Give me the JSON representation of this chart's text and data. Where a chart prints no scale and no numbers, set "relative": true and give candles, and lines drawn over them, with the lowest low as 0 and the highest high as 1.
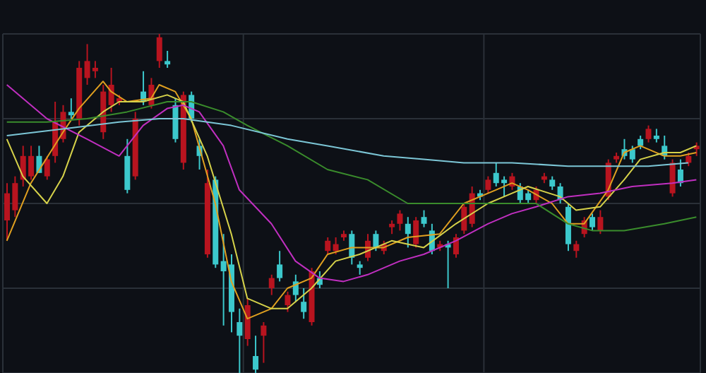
{
  "chart_data": {
    "type": "candlestick",
    "relative": true,
    "grid": true,
    "tick_labels": false,
    "categories": [
      null,
      null,
      null,
      null,
      null,
      null,
      null,
      null,
      null,
      null,
      null,
      null,
      null,
      null,
      null,
      null,
      null,
      null,
      null,
      null,
      null,
      null,
      null,
      null,
      null,
      null,
      null,
      null,
      null,
      null,
      null,
      null,
      null,
      null,
      null,
      null,
      null,
      null,
      null,
      null,
      null,
      null,
      null,
      null,
      null,
      null,
      null,
      null,
      null,
      null,
      null,
      null,
      null,
      null,
      null,
      null,
      null,
      null,
      null,
      null,
      null,
      null,
      null,
      null,
      null,
      null,
      null,
      null,
      null,
      null,
      null,
      null,
      null,
      null,
      null,
      null,
      null,
      null,
      null,
      null,
      null,
      null,
      null,
      null,
      null,
      null,
      null
    ],
    "ohlc": [
      [
        0.45,
        0.56,
        0.39,
        0.53
      ],
      [
        0.48,
        0.58,
        0.46,
        0.56
      ],
      [
        0.57,
        0.67,
        0.55,
        0.64
      ],
      [
        0.58,
        0.67,
        0.57,
        0.64
      ],
      [
        0.64,
        0.67,
        0.59,
        0.59
      ],
      [
        0.58,
        0.64,
        0.57,
        0.63
      ],
      [
        0.64,
        0.8,
        0.62,
        0.74
      ],
      [
        0.69,
        0.79,
        0.68,
        0.77
      ],
      [
        0.77,
        0.81,
        0.75,
        0.76
      ],
      [
        0.75,
        0.92,
        0.73,
        0.9
      ],
      [
        0.87,
        0.97,
        0.85,
        0.92
      ],
      [
        0.89,
        0.92,
        0.87,
        0.9
      ],
      [
        0.71,
        0.85,
        0.69,
        0.83
      ],
      [
        0.79,
        0.9,
        0.77,
        0.85
      ],
      [
        0.8,
        0.82,
        0.79,
        0.81
      ],
      [
        0.64,
        0.69,
        0.53,
        0.54
      ],
      [
        0.58,
        0.77,
        0.57,
        0.75
      ],
      [
        0.83,
        0.89,
        0.79,
        0.8
      ],
      [
        0.79,
        0.87,
        0.78,
        0.85
      ],
      [
        0.92,
        1,
        0.9,
        0.99
      ],
      [
        0.92,
        0.95,
        0.9,
        0.91
      ],
      [
        0.79,
        0.81,
        0.68,
        0.69
      ],
      [
        0.62,
        0.83,
        0.6,
        0.82
      ],
      [
        0.82,
        0.83,
        0.74,
        0.75
      ],
      [
        0.67,
        0.69,
        0.6,
        0.64
      ],
      [
        0.35,
        0.6,
        0.34,
        0.56
      ],
      [
        0.57,
        0.58,
        0.31,
        0.32
      ],
      [
        0.33,
        0.41,
        0.14,
        0.3
      ],
      [
        0.32,
        0.35,
        0.12,
        0.18
      ],
      [
        0.15,
        0.19,
        0,
        0.11
      ],
      [
        0.1,
        0.22,
        0.08,
        0.2
      ],
      [
        0.05,
        0.11,
        0,
        0.01
      ],
      [
        0.11,
        0.15,
        0.03,
        0.14
      ],
      [
        0.25,
        0.29,
        0.23,
        0.28
      ],
      [
        0.32,
        0.36,
        0.27,
        0.28
      ],
      [
        0.2,
        0.24,
        0.18,
        0.23
      ],
      [
        0.27,
        0.29,
        0.21,
        0.23
      ],
      [
        0.21,
        0.25,
        0.16,
        0.18
      ],
      [
        0.15,
        0.31,
        0.14,
        0.3
      ],
      [
        0.28,
        0.3,
        0.25,
        0.26
      ],
      [
        0.36,
        0.4,
        0.35,
        0.39
      ],
      [
        0.36,
        0.4,
        0.35,
        0.38
      ],
      [
        0.4,
        0.42,
        0.39,
        0.41
      ],
      [
        0.41,
        0.42,
        0.32,
        0.34
      ],
      [
        0.32,
        0.33,
        0.29,
        0.31
      ],
      [
        0.34,
        0.41,
        0.33,
        0.39
      ],
      [
        0.41,
        0.42,
        0.36,
        0.37
      ],
      [
        0.36,
        0.39,
        0.35,
        0.38
      ],
      [
        0.43,
        0.45,
        0.41,
        0.44
      ],
      [
        0.44,
        0.48,
        0.42,
        0.47
      ],
      [
        0.44,
        0.46,
        0.37,
        0.41
      ],
      [
        0.38,
        0.46,
        0.37,
        0.45
      ],
      [
        0.46,
        0.48,
        0.43,
        0.44
      ],
      [
        0.42,
        0.44,
        0.35,
        0.36
      ],
      [
        0.37,
        0.39,
        0.36,
        0.38
      ],
      [
        0.38,
        0.39,
        0.25,
        0.37
      ],
      [
        0.35,
        0.41,
        0.34,
        0.4
      ],
      [
        0.42,
        0.5,
        0.41,
        0.49
      ],
      [
        0.44,
        0.55,
        0.43,
        0.53
      ],
      [
        0.53,
        0.54,
        0.51,
        0.52
      ],
      [
        0.54,
        0.58,
        0.53,
        0.57
      ],
      [
        0.59,
        0.62,
        0.55,
        0.56
      ],
      [
        0.57,
        0.58,
        0.52,
        0.56
      ],
      [
        0.55,
        0.59,
        0.54,
        0.58
      ],
      [
        0.55,
        0.56,
        0.5,
        0.51
      ],
      [
        0.53,
        0.54,
        0.5,
        0.51
      ],
      [
        0.51,
        0.55,
        0.5,
        0.54
      ],
      [
        0.57,
        0.59,
        0.56,
        0.58
      ],
      [
        0.57,
        0.58,
        0.54,
        0.55
      ],
      [
        0.55,
        0.56,
        0.5,
        0.51
      ],
      [
        0.49,
        0.5,
        0.36,
        0.38
      ],
      [
        0.36,
        0.39,
        0.34,
        0.38
      ],
      [
        0.41,
        0.46,
        0.4,
        0.45
      ],
      [
        0.46,
        0.47,
        0.42,
        0.43
      ],
      [
        0.42,
        0.48,
        0.41,
        0.46
      ],
      [
        0.52,
        0.63,
        0.51,
        0.62
      ],
      [
        0.63,
        0.65,
        0.62,
        0.64
      ],
      [
        0.66,
        0.69,
        0.63,
        0.64
      ],
      [
        0.66,
        0.67,
        0.62,
        0.63
      ],
      [
        0.69,
        0.7,
        0.66,
        0.67
      ],
      [
        0.69,
        0.73,
        0.68,
        0.72
      ],
      [
        0.7,
        0.72,
        0.68,
        0.69
      ],
      [
        0.67,
        0.7,
        0.63,
        0.64
      ],
      [
        0.53,
        0.63,
        0.52,
        0.62
      ],
      [
        0.6,
        0.63,
        0.55,
        0.56
      ],
      [
        0.62,
        0.65,
        0.61,
        0.64
      ],
      [
        0.66,
        0.68,
        0.64,
        0.67
      ]
    ],
    "colors": [
      "#b8141f",
      "#b8141f",
      "#b8141f",
      "#b8141f",
      "#3cc8cc",
      "#b8141f",
      "#b8141f",
      "#b8141f",
      "#3cc8cc",
      "#b8141f",
      "#b8141f",
      "#b8141f",
      "#b8141f",
      "#b8141f",
      "#b8141f",
      "#3cc8cc",
      "#b8141f",
      "#3cc8cc",
      "#b8141f",
      "#b8141f",
      "#3cc8cc",
      "#3cc8cc",
      "#b8141f",
      "#3cc8cc",
      "#3cc8cc",
      "#b8141f",
      "#3cc8cc",
      "#3cc8cc",
      "#3cc8cc",
      "#3cc8cc",
      "#b8141f",
      "#3cc8cc",
      "#b8141f",
      "#b8141f",
      "#3cc8cc",
      "#b8141f",
      "#3cc8cc",
      "#3cc8cc",
      "#b8141f",
      "#3cc8cc",
      "#b8141f",
      "#b8141f",
      "#b8141f",
      "#3cc8cc",
      "#3cc8cc",
      "#b8141f",
      "#3cc8cc",
      "#b8141f",
      "#b8141f",
      "#b8141f",
      "#3cc8cc",
      "#b8141f",
      "#3cc8cc",
      "#3cc8cc",
      "#b8141f",
      "#3cc8cc",
      "#b8141f",
      "#b8141f",
      "#b8141f",
      "#3cc8cc",
      "#b8141f",
      "#3cc8cc",
      "#3cc8cc",
      "#b8141f",
      "#3cc8cc",
      "#3cc8cc",
      "#b8141f",
      "#b8141f",
      "#3cc8cc",
      "#3cc8cc",
      "#3cc8cc",
      "#b8141f",
      "#b8141f",
      "#3cc8cc",
      "#b8141f",
      "#b8141f",
      "#b8141f",
      "#3cc8cc",
      "#3cc8cc",
      "#3cc8cc",
      "#b8141f",
      "#3cc8cc",
      "#3cc8cc",
      "#b8141f",
      "#3cc8cc",
      "#b8141f",
      "#b8141f"
    ],
    "series": [
      {
        "type": "line",
        "color": "#e0a020",
        "values": [
          0.39,
          null,
          null,
          0.56,
          null,
          null,
          null,
          0.71,
          null,
          0.78,
          null,
          null,
          0.86,
          0.83,
          null,
          0.8,
          null,
          null,
          0.81,
          0.85,
          null,
          0.83,
          null,
          0.75,
          null,
          null,
          0.5,
          null,
          0.27,
          null,
          0.16,
          null,
          null,
          0.19,
          null,
          0.25,
          null,
          null,
          0.28,
          null,
          0.35,
          null,
          null,
          0.37,
          null,
          null,
          null,
          0.37,
          null,
          null,
          0.4,
          null,
          null,
          null,
          0.41,
          null,
          null,
          0.5,
          null,
          null,
          null,
          0.54,
          null,
          0.56,
          null,
          0.54,
          null,
          null,
          0.5,
          null,
          0.44,
          null,
          0.44,
          null,
          null,
          0.54,
          null,
          0.65,
          null,
          0.67,
          null,
          null,
          0.64,
          null,
          0.64,
          null,
          0.65
        ]
      },
      {
        "type": "line",
        "color": "#d6d24a",
        "values": [
          0.69,
          null,
          0.58,
          null,
          null,
          0.5,
          null,
          0.58,
          null,
          0.71,
          null,
          null,
          0.77,
          null,
          0.8,
          null,
          null,
          0.8,
          null,
          null,
          0.82,
          null,
          0.8,
          null,
          null,
          0.64,
          null,
          null,
          0.41,
          null,
          0.22,
          null,
          null,
          0.19,
          null,
          0.19,
          null,
          null,
          0.25,
          null,
          null,
          0.33,
          null,
          null,
          0.35,
          null,
          null,
          null,
          0.39,
          null,
          null,
          null,
          0.37,
          null,
          null,
          null,
          0.44,
          null,
          null,
          null,
          0.5,
          null,
          null,
          0.53,
          null,
          0.55,
          null,
          null,
          null,
          0.52,
          null,
          0.48,
          null,
          null,
          0.49,
          null,
          null,
          0.57,
          null,
          0.63,
          null,
          null,
          0.65,
          null,
          0.65,
          null,
          0.67
        ]
      },
      {
        "type": "line",
        "color": "#c02fc0",
        "values": [
          0.85,
          null,
          null,
          null,
          null,
          0.75,
          null,
          null,
          null,
          null,
          0.69,
          null,
          null,
          null,
          0.64,
          null,
          null,
          0.73,
          null,
          null,
          0.78,
          null,
          0.79,
          null,
          0.77,
          null,
          null,
          0.67,
          null,
          0.54,
          null,
          null,
          null,
          0.44,
          null,
          null,
          0.33,
          null,
          null,
          0.28,
          null,
          null,
          0.27,
          null,
          null,
          0.29,
          null,
          null,
          null,
          0.33,
          null,
          null,
          0.35,
          null,
          null,
          null,
          0.39,
          null,
          null,
          null,
          0.44,
          null,
          null,
          0.47,
          null,
          null,
          0.49,
          null,
          null,
          null,
          0.52,
          null,
          null,
          null,
          0.53,
          null,
          null,
          null,
          0.55,
          null,
          null,
          null,
          null,
          0.56,
          null,
          null,
          0.57
        ]
      },
      {
        "type": "line",
        "color": "#3a8c2c",
        "values": [
          0.74,
          null,
          null,
          null,
          null,
          0.74,
          null,
          null,
          null,
          null,
          0.75,
          null,
          null,
          null,
          null,
          0.77,
          null,
          null,
          null,
          null,
          0.8,
          null,
          null,
          0.8,
          null,
          null,
          null,
          0.77,
          null,
          null,
          0.73,
          null,
          null,
          null,
          null,
          0.67,
          null,
          null,
          null,
          null,
          0.6,
          null,
          null,
          null,
          null,
          0.57,
          null,
          null,
          null,
          null,
          0.5,
          null,
          null,
          0.5,
          null,
          null,
          null,
          0.5,
          null,
          null,
          null,
          null,
          null,
          0.5,
          null,
          null,
          0.5,
          null,
          null,
          null,
          0.44,
          null,
          null,
          0.42,
          null,
          null,
          null,
          0.42,
          null,
          null,
          null,
          null,
          0.44,
          null,
          null,
          null,
          0.46
        ]
      },
      {
        "type": "line",
        "color": "#7cc6d6",
        "values": [
          0.7,
          null,
          null,
          null,
          null,
          null,
          null,
          0.72,
          null,
          null,
          null,
          null,
          null,
          null,
          0.74,
          null,
          null,
          null,
          null,
          0.75,
          null,
          null,
          0.75,
          null,
          null,
          null,
          null,
          null,
          0.73,
          null,
          null,
          null,
          null,
          null,
          null,
          0.69,
          null,
          null,
          null,
          null,
          0.67,
          null,
          null,
          null,
          null,
          null,
          null,
          0.64,
          null,
          null,
          null,
          null,
          0.63,
          null,
          null,
          null,
          null,
          0.62,
          null,
          null,
          null,
          null,
          null,
          0.62,
          null,
          null,
          null,
          null,
          null,
          null,
          0.61,
          null,
          null,
          null,
          0.61,
          null,
          null,
          null,
          null,
          null,
          0.61,
          null,
          null,
          null,
          null,
          0.62,
          null
        ]
      }
    ]
  }
}
